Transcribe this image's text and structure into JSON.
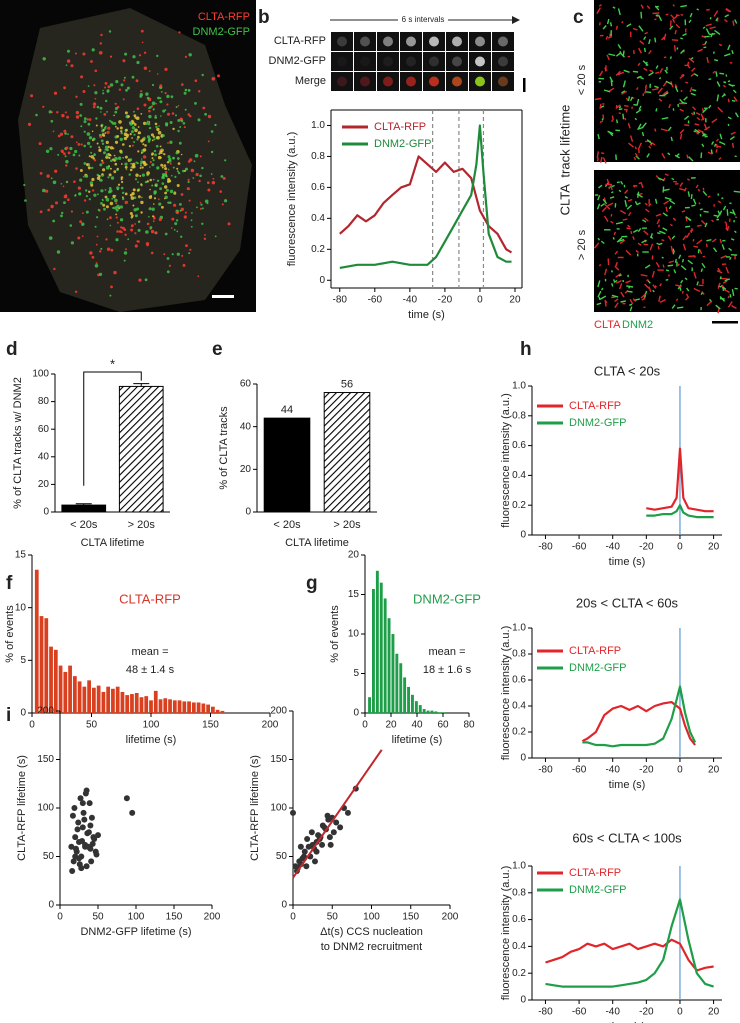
{
  "panels": [
    "a",
    "b",
    "c",
    "d",
    "e",
    "f",
    "g",
    "h",
    "i"
  ],
  "images": {
    "a": {
      "channels": [
        {
          "name": "CLTA-RFP",
          "color": "#ff3b2f"
        },
        {
          "name": "DNM2-GFP",
          "color": "#3fc24a"
        }
      ]
    },
    "b": {
      "interval": "6 s intervals",
      "rows": [
        "CLTA-RFP",
        "DNM2-GFP",
        "Merge"
      ]
    },
    "c": {
      "title": "CLTA  track lifetime",
      "rows": [
        "< 20 s",
        "> 20 s"
      ],
      "channels": [
        {
          "name": "CLTA",
          "color": "#e0262b"
        },
        {
          "name": "DNM2",
          "color": "#1e9e48"
        }
      ]
    }
  },
  "chart_data": [
    {
      "type": "line",
      "ylabel": "fluorescence intensity (a.u.)",
      "xlabel": "time (s)",
      "xlim": [
        -85,
        24
      ],
      "xticks": [
        -80,
        -60,
        -40,
        -20,
        0,
        20
      ],
      "ylim": [
        -0.05,
        1.1
      ],
      "yticks": [
        0,
        0.2,
        0.4,
        0.6,
        0.8,
        {
          "value": 1,
          "label": "1.0"
        }
      ],
      "frame": true,
      "legend": "upper left",
      "vlines": [
        -27,
        -12,
        2
      ],
      "vline_color": "#8a8a8a",
      "vline_dash": true,
      "series": [
        {
          "name": "CLTA-RFP",
          "color": "#b3262d",
          "x": [
            -80,
            -75,
            -70,
            -65,
            -60,
            -55,
            -50,
            -45,
            -40,
            -35,
            -30,
            -25,
            -20,
            -15,
            -10,
            -5,
            0,
            5,
            10,
            15,
            18
          ],
          "values": [
            0.3,
            0.35,
            0.42,
            0.38,
            0.42,
            0.5,
            0.55,
            0.6,
            0.62,
            0.8,
            0.75,
            0.7,
            0.76,
            0.7,
            0.72,
            0.66,
            0.45,
            0.35,
            0.3,
            0.2,
            0.18
          ]
        },
        {
          "name": "DNM2-GFP",
          "color": "#1f8a3a",
          "x": [
            -80,
            -70,
            -60,
            -50,
            -40,
            -30,
            -25,
            -20,
            -15,
            -10,
            -5,
            -2,
            0,
            2,
            5,
            10,
            15,
            18
          ],
          "values": [
            0.08,
            0.1,
            0.1,
            0.12,
            0.1,
            0.1,
            0.15,
            0.25,
            0.35,
            0.45,
            0.55,
            0.75,
            1.0,
            0.7,
            0.3,
            0.15,
            0.12,
            0.12
          ]
        }
      ]
    },
    {
      "type": "bar",
      "ylabel": "% of CLTA tracks w/ DNM2",
      "xlabel": "CLTA lifetime",
      "categories": [
        "< 20s",
        "> 20s"
      ],
      "values": [
        5,
        91
      ],
      "errors": [
        1,
        2
      ],
      "color": "#000000",
      "hatch": [
        false,
        true
      ],
      "annotation": "*",
      "ylim": [
        0,
        100
      ],
      "yticks": [
        0,
        20,
        40,
        60,
        80,
        100
      ]
    },
    {
      "type": "bar",
      "ylabel": "% of CLTA tracks",
      "xlabel": "CLTA lifetime",
      "categories": [
        "< 20s",
        "> 20s"
      ],
      "values": [
        44,
        56
      ],
      "show_values": true,
      "color": "#000000",
      "hatch": [
        false,
        true
      ],
      "ylim": [
        0,
        60
      ],
      "yticks": [
        0,
        20,
        40,
        60
      ]
    },
    {
      "type": "histogram",
      "title": "CLTA-RFP",
      "title_color": "#d6352a",
      "ylabel": "% of events",
      "xlabel": "lifetime (s)",
      "note": [
        "mean =",
        "48 ± 1.4 s"
      ],
      "color": "#d9401f",
      "bins": [
        2,
        6,
        10,
        14,
        18,
        22,
        26,
        30,
        34,
        38,
        42,
        46,
        50,
        54,
        58,
        62,
        66,
        70,
        74,
        78,
        82,
        86,
        90,
        94,
        98,
        102,
        106,
        110,
        114,
        118,
        122,
        126,
        130,
        134,
        138,
        142,
        146,
        150,
        154,
        158,
        162
      ],
      "values": [
        13.6,
        9.2,
        9.0,
        6.3,
        6.0,
        4.5,
        3.9,
        4.5,
        3.5,
        3.0,
        2.5,
        3.1,
        2.4,
        2.6,
        2.0,
        2.5,
        2.3,
        2.5,
        2.0,
        1.7,
        1.8,
        1.9,
        1.5,
        1.6,
        1.2,
        2.1,
        1.3,
        1.4,
        1.3,
        1.2,
        1.2,
        1.1,
        1.1,
        1.0,
        1.0,
        0.9,
        0.8,
        0.6,
        0.3,
        0.2
      ],
      "xlim": [
        0,
        200
      ],
      "xticks": [
        0,
        50,
        100,
        150,
        200
      ],
      "ylim": [
        0,
        15
      ],
      "yticks": [
        0,
        5,
        10,
        15
      ]
    },
    {
      "type": "histogram",
      "title": "DNM2-GFP",
      "title_color": "#1e9e48",
      "ylabel": "% of events",
      "xlabel": "lifetime (s)",
      "note": [
        "mean =",
        "18 ± 1.6 s"
      ],
      "color": "#1e9e48",
      "bins": [
        2,
        5,
        8,
        11,
        14,
        17,
        20,
        23,
        26,
        29,
        32,
        35,
        38,
        41,
        44,
        47,
        50,
        53,
        56,
        59,
        62
      ],
      "values": [
        2.0,
        15.7,
        18.0,
        16.5,
        14.5,
        12.0,
        10.0,
        7.5,
        6.3,
        4.5,
        3.3,
        2.3,
        1.5,
        1.0,
        0.5,
        0.3,
        0.3,
        0.2,
        0.1,
        0.1
      ],
      "xlim": [
        0,
        80
      ],
      "xticks": [
        0,
        20,
        40,
        60,
        80
      ],
      "ylim": [
        0,
        20
      ],
      "yticks": [
        0,
        5,
        10,
        15,
        20
      ]
    },
    {
      "type": "line",
      "title": "CLTA < 20s",
      "ylabel": "fluorescence intensity (a.u.)",
      "xlabel": "time (s)",
      "xlim": [
        -88,
        25
      ],
      "xticks": [
        -80,
        -60,
        -40,
        -20,
        0,
        20
      ],
      "ylim": [
        0,
        1
      ],
      "yticks": [
        0,
        0.2,
        0.4,
        0.6,
        0.8,
        {
          "value": 1,
          "label": "1.0"
        }
      ],
      "legend": "upper left",
      "vlines": [
        0
      ],
      "vline_color": "#5b9bd5",
      "vline_dash": false,
      "series": [
        {
          "name": "CLTA-RFP",
          "color": "#e0262b",
          "x": [
            -20,
            -15,
            -10,
            -5,
            -2,
            0,
            2,
            5,
            10,
            15,
            20
          ],
          "values": [
            0.18,
            0.17,
            0.18,
            0.19,
            0.25,
            0.58,
            0.25,
            0.18,
            0.17,
            0.16,
            0.16
          ]
        },
        {
          "name": "DNM2-GFP",
          "color": "#1e9e48",
          "x": [
            -20,
            -15,
            -10,
            -5,
            -2,
            0,
            2,
            5,
            10,
            15,
            20
          ],
          "values": [
            0.13,
            0.13,
            0.14,
            0.14,
            0.16,
            0.2,
            0.15,
            0.13,
            0.12,
            0.12,
            0.12
          ]
        }
      ]
    },
    {
      "type": "line",
      "title": "20s < CLTA < 60s",
      "ylabel": "fluorescence intensity (a.u.)",
      "xlabel": "time (s)",
      "xlim": [
        -88,
        25
      ],
      "xticks": [
        -80,
        -60,
        -40,
        -20,
        0,
        20
      ],
      "ylim": [
        0,
        1
      ],
      "yticks": [
        0,
        0.2,
        0.4,
        0.6,
        0.8,
        {
          "value": 1,
          "label": "1.0"
        }
      ],
      "legend": "upper left",
      "vlines": [
        0
      ],
      "vline_color": "#5b9bd5",
      "vline_dash": false,
      "series": [
        {
          "name": "CLTA-RFP",
          "color": "#e0262b",
          "x": [
            -58,
            -55,
            -50,
            -45,
            -40,
            -35,
            -30,
            -25,
            -20,
            -15,
            -10,
            -5,
            0,
            3,
            6,
            9
          ],
          "values": [
            0.13,
            0.15,
            0.2,
            0.33,
            0.38,
            0.4,
            0.37,
            0.4,
            0.36,
            0.4,
            0.42,
            0.43,
            0.38,
            0.25,
            0.15,
            0.1
          ]
        },
        {
          "name": "DNM2-GFP",
          "color": "#1e9e48",
          "x": [
            -58,
            -55,
            -50,
            -45,
            -40,
            -35,
            -30,
            -25,
            -20,
            -15,
            -10,
            -5,
            0,
            3,
            6,
            9
          ],
          "values": [
            0.12,
            0.12,
            0.1,
            0.1,
            0.09,
            0.1,
            0.1,
            0.1,
            0.1,
            0.11,
            0.15,
            0.3,
            0.55,
            0.35,
            0.2,
            0.12
          ]
        }
      ]
    },
    {
      "type": "line",
      "title": "60s < CLTA < 100s",
      "ylabel": "fluorescence intensity (a.u.)",
      "xlabel": "time (s)",
      "xlim": [
        -88,
        25
      ],
      "xticks": [
        -80,
        -60,
        -40,
        -20,
        0,
        20
      ],
      "ylim": [
        0,
        1
      ],
      "yticks": [
        0,
        0.2,
        0.4,
        0.6,
        0.8,
        {
          "value": 1,
          "label": "1.0"
        }
      ],
      "legend": "upper left",
      "vlines": [
        0
      ],
      "vline_color": "#5b9bd5",
      "vline_dash": false,
      "series": [
        {
          "name": "CLTA-RFP",
          "color": "#e0262b",
          "x": [
            -80,
            -75,
            -70,
            -65,
            -60,
            -55,
            -50,
            -45,
            -40,
            -35,
            -30,
            -25,
            -20,
            -15,
            -10,
            -5,
            0,
            5,
            10,
            15,
            20
          ],
          "values": [
            0.28,
            0.3,
            0.32,
            0.36,
            0.38,
            0.42,
            0.4,
            0.42,
            0.38,
            0.4,
            0.42,
            0.38,
            0.4,
            0.42,
            0.4,
            0.45,
            0.42,
            0.3,
            0.22,
            0.24,
            0.25
          ]
        },
        {
          "name": "DNM2-GFP",
          "color": "#1e9e48",
          "x": [
            -80,
            -75,
            -70,
            -65,
            -60,
            -55,
            -50,
            -45,
            -40,
            -35,
            -30,
            -25,
            -20,
            -15,
            -10,
            -5,
            0,
            5,
            10,
            15,
            20
          ],
          "values": [
            0.12,
            0.11,
            0.1,
            0.1,
            0.1,
            0.1,
            0.1,
            0.1,
            0.1,
            0.11,
            0.12,
            0.13,
            0.15,
            0.2,
            0.3,
            0.55,
            0.75,
            0.45,
            0.2,
            0.12,
            0.1
          ]
        }
      ]
    },
    {
      "type": "scatter",
      "ylabel": "CLTA-RFP lifetime (s)",
      "xlabel": "DNM2-GFP lifetime (s)",
      "color": "#333333",
      "x": [
        15,
        18,
        20,
        22,
        25,
        28,
        30,
        33,
        35,
        38,
        40,
        42,
        45,
        48,
        50,
        16,
        20,
        24,
        27,
        31,
        34,
        37,
        41,
        44,
        47,
        19,
        23,
        26,
        29,
        32,
        36,
        39,
        43,
        17,
        21,
        25,
        30,
        35,
        40,
        28,
        33,
        88,
        95
      ],
      "values": [
        60,
        45,
        70,
        55,
        65,
        50,
        80,
        62,
        40,
        75,
        58,
        90,
        68,
        52,
        72,
        35,
        50,
        85,
        110,
        95,
        115,
        60,
        45,
        70,
        55,
        100,
        78,
        42,
        66,
        88,
        74,
        105,
        63,
        92,
        58,
        48,
        105,
        118,
        82,
        38,
        60,
        110,
        95
      ],
      "xlim": [
        0,
        200
      ],
      "xticks": [
        0,
        50,
        100,
        150,
        200
      ],
      "ylim": [
        0,
        200
      ],
      "yticks": [
        0,
        50,
        100,
        150,
        200
      ]
    },
    {
      "type": "scatter",
      "ylabel": "CLTA-RFP lifetime (s)",
      "xlabel": [
        "Δt(s) CCS nucleation",
        "to DNM2 recruitment"
      ],
      "color": "#333333",
      "x": [
        0,
        3,
        5,
        8,
        10,
        12,
        15,
        17,
        20,
        22,
        25,
        27,
        30,
        32,
        35,
        37,
        40,
        42,
        45,
        47,
        50,
        52,
        55,
        60,
        65,
        70,
        80,
        10,
        18,
        24,
        30,
        38,
        44,
        28,
        34,
        48,
        6,
        14
      ],
      "values": [
        95,
        40,
        35,
        45,
        42,
        48,
        55,
        40,
        60,
        50,
        62,
        58,
        65,
        72,
        70,
        62,
        80,
        78,
        88,
        70,
        90,
        75,
        85,
        80,
        100,
        95,
        120,
        60,
        68,
        75,
        55,
        82,
        92,
        45,
        68,
        62,
        38,
        50
      ],
      "fit": {
        "x": [
          0,
          113
        ],
        "values": [
          28,
          160
        ],
        "color": "#c0282d"
      },
      "xlim": [
        0,
        200
      ],
      "xticks": [
        0,
        50,
        100,
        150,
        200
      ],
      "ylim": [
        0,
        200
      ],
      "yticks": [
        0,
        50,
        100,
        150,
        200
      ]
    }
  ]
}
